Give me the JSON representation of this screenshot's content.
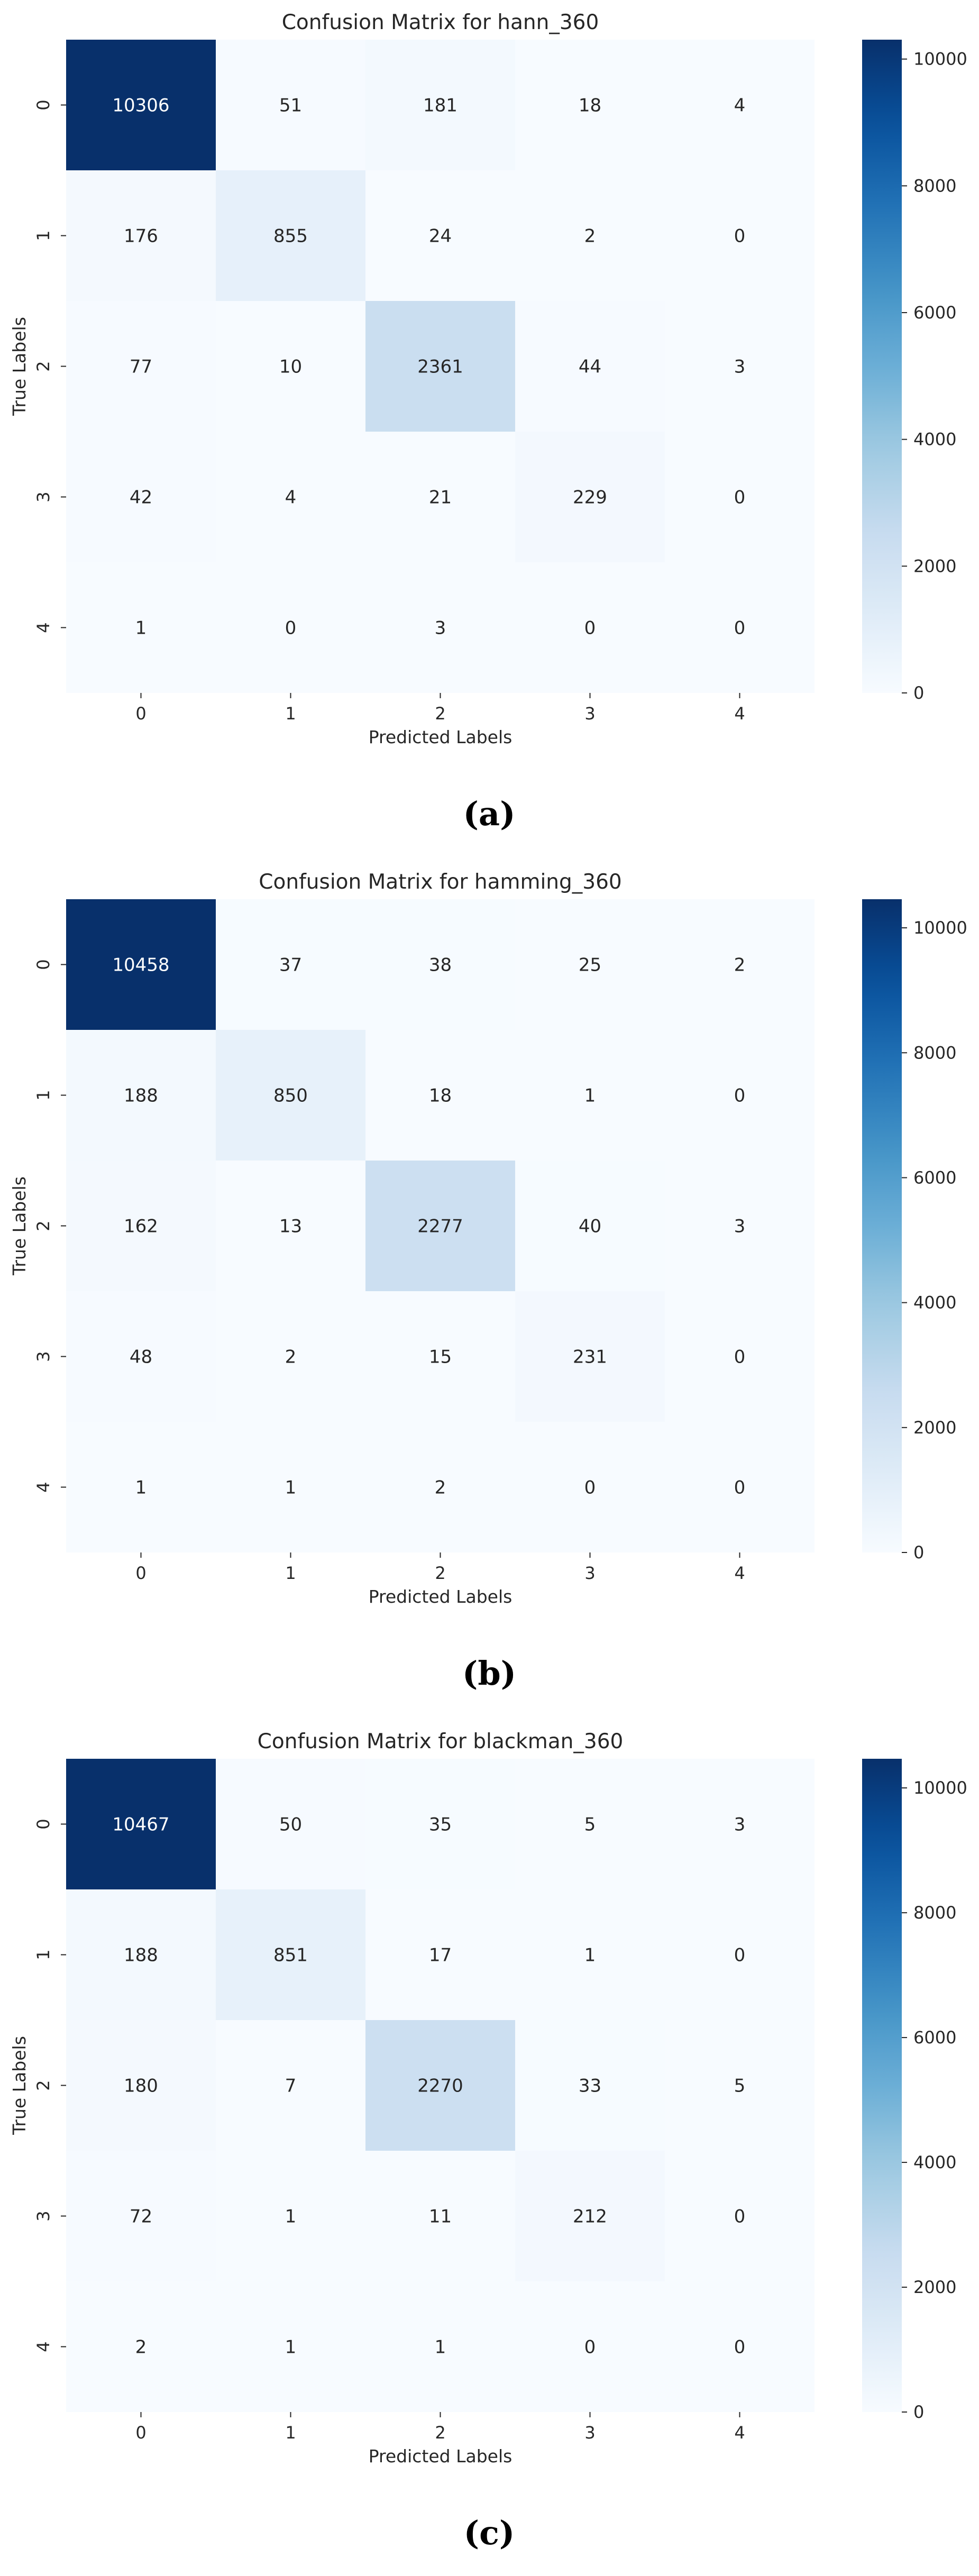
{
  "chart_data": [
    {
      "type": "heatmap",
      "title": "Confusion Matrix for hann_360",
      "xlabel": "Predicted Labels",
      "ylabel": "True Labels",
      "x_categories": [
        "0",
        "1",
        "2",
        "3",
        "4"
      ],
      "y_categories": [
        "0",
        "1",
        "2",
        "3",
        "4"
      ],
      "values": [
        [
          10306,
          51,
          181,
          18,
          4
        ],
        [
          176,
          855,
          24,
          2,
          0
        ],
        [
          77,
          10,
          2361,
          44,
          3
        ],
        [
          42,
          4,
          21,
          229,
          0
        ],
        [
          1,
          0,
          3,
          0,
          0
        ]
      ],
      "colorbar": {
        "range": [
          0,
          10306
        ],
        "ticks": [
          "0",
          "2000",
          "4000",
          "6000",
          "8000",
          "10000"
        ],
        "tick_values": [
          0,
          2000,
          4000,
          6000,
          8000,
          10000
        ],
        "colormap": "Blues"
      },
      "caption": "(a)"
    },
    {
      "type": "heatmap",
      "title": "Confusion Matrix for hamming_360",
      "xlabel": "Predicted Labels",
      "ylabel": "True Labels",
      "x_categories": [
        "0",
        "1",
        "2",
        "3",
        "4"
      ],
      "y_categories": [
        "0",
        "1",
        "2",
        "3",
        "4"
      ],
      "values": [
        [
          10458,
          37,
          38,
          25,
          2
        ],
        [
          188,
          850,
          18,
          1,
          0
        ],
        [
          162,
          13,
          2277,
          40,
          3
        ],
        [
          48,
          2,
          15,
          231,
          0
        ],
        [
          1,
          1,
          2,
          0,
          0
        ]
      ],
      "colorbar": {
        "range": [
          0,
          10458
        ],
        "ticks": [
          "0",
          "2000",
          "4000",
          "6000",
          "8000",
          "10000"
        ],
        "tick_values": [
          0,
          2000,
          4000,
          6000,
          8000,
          10000
        ],
        "colormap": "Blues"
      },
      "caption": "(b)"
    },
    {
      "type": "heatmap",
      "title": "Confusion Matrix for blackman_360",
      "xlabel": "Predicted Labels",
      "ylabel": "True Labels",
      "x_categories": [
        "0",
        "1",
        "2",
        "3",
        "4"
      ],
      "y_categories": [
        "0",
        "1",
        "2",
        "3",
        "4"
      ],
      "values": [
        [
          10467,
          50,
          35,
          5,
          3
        ],
        [
          188,
          851,
          17,
          1,
          0
        ],
        [
          180,
          7,
          2270,
          33,
          5
        ],
        [
          72,
          1,
          11,
          212,
          0
        ],
        [
          2,
          1,
          1,
          0,
          0
        ]
      ],
      "colorbar": {
        "range": [
          0,
          10467
        ],
        "ticks": [
          "0",
          "2000",
          "4000",
          "6000",
          "8000",
          "10000"
        ],
        "tick_values": [
          0,
          2000,
          4000,
          6000,
          8000,
          10000
        ],
        "colormap": "Blues"
      },
      "caption": "(c)"
    }
  ],
  "colors": {
    "low": "#f7fbff",
    "high": "#08306b",
    "text_dark": "#262626",
    "text_light": "#ffffff"
  }
}
